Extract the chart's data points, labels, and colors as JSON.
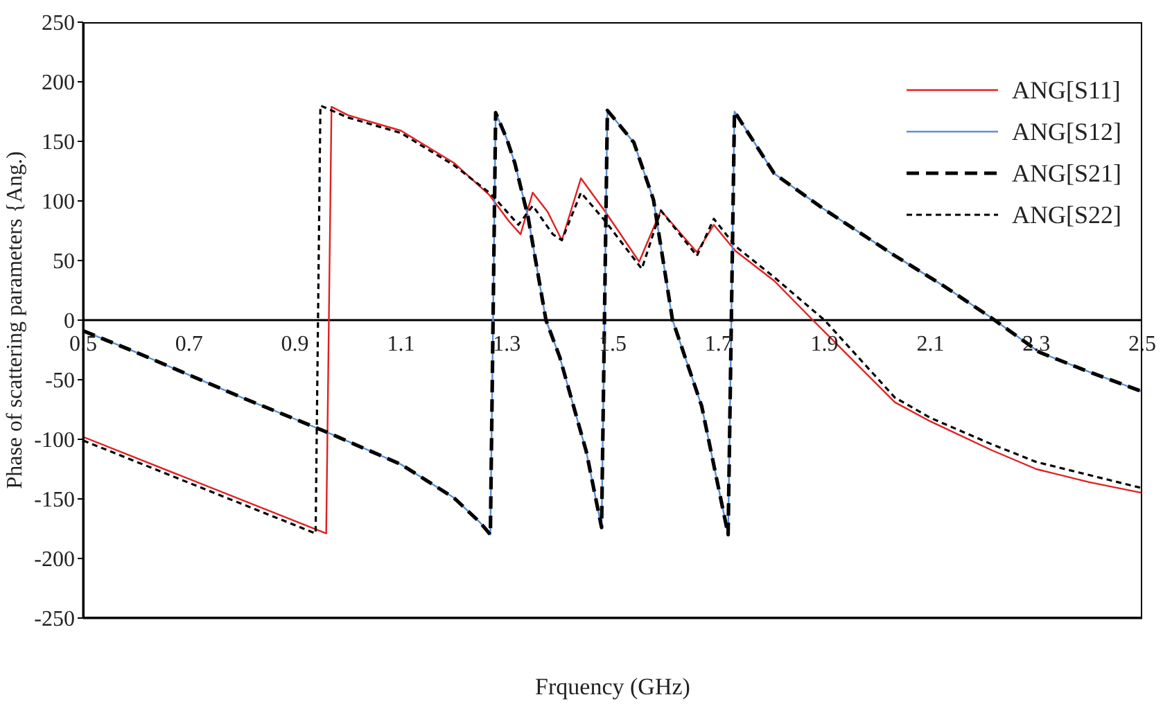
{
  "chart_data": {
    "type": "line",
    "xlabel": "Frquency (GHz)",
    "ylabel": "Phase of scattering parameters {Ang.)",
    "xlim": [
      0.5,
      2.5
    ],
    "xticks": [
      0.5,
      0.7,
      0.9,
      1.1,
      1.3,
      1.5,
      1.7,
      1.9,
      2.1,
      2.3,
      2.5
    ],
    "ylim": [
      -250,
      250
    ],
    "yticks": [
      -250,
      -200,
      -150,
      -100,
      -50,
      0,
      50,
      100,
      150,
      200,
      250
    ],
    "grid": false,
    "legend": "top right",
    "marker": "none",
    "series": [
      {
        "name": "ANG[S11]",
        "color": "#e02020",
        "line_style": "solid",
        "x": [
          0.5,
          0.959,
          0.969,
          1.0,
          1.1,
          1.2,
          1.267,
          1.304,
          1.326,
          1.349,
          1.377,
          1.404,
          1.44,
          1.486,
          1.55,
          1.591,
          1.659,
          1.691,
          1.732,
          1.805,
          1.878,
          2.033,
          2.1,
          2.215,
          2.3,
          2.4,
          2.5
        ],
        "values": [
          -98,
          -179,
          179,
          172,
          159,
          132,
          105,
          83,
          72,
          107,
          91,
          67,
          119,
          91,
          49,
          92,
          57,
          80,
          58,
          33,
          0,
          -69,
          -85,
          -109,
          -125,
          -136,
          -145
        ]
      },
      {
        "name": "ANG[S12]",
        "color": "#5b8fd9",
        "line_style": "solid",
        "x": [
          0.5,
          0.6,
          0.7,
          0.8,
          0.9,
          0.96,
          1.1,
          1.2,
          1.25,
          1.269,
          1.279,
          1.3,
          1.315,
          1.34,
          1.374,
          1.4,
          1.45,
          1.479,
          1.49,
          1.54,
          1.577,
          1.613,
          1.668,
          1.718,
          1.73,
          1.805,
          1.896,
          2.033,
          2.124,
          2.215,
          2.306,
          2.397,
          2.5
        ],
        "values": [
          -9,
          -27,
          -46,
          -65,
          -83,
          -94,
          -121,
          -149,
          -170,
          -180,
          174,
          152,
          132,
          87,
          0,
          -31,
          -110,
          -174,
          176,
          149,
          101,
          0,
          -72,
          -180,
          175,
          123,
          94,
          54,
          29,
          2,
          -27,
          -43,
          -60
        ]
      },
      {
        "name": "ANG[S21]",
        "color": "#000000",
        "line_style": "dashed",
        "x": [
          0.5,
          0.6,
          0.7,
          0.8,
          0.9,
          0.96,
          1.1,
          1.2,
          1.25,
          1.269,
          1.279,
          1.3,
          1.315,
          1.34,
          1.374,
          1.4,
          1.45,
          1.479,
          1.49,
          1.54,
          1.577,
          1.613,
          1.668,
          1.718,
          1.73,
          1.805,
          1.896,
          2.033,
          2.124,
          2.215,
          2.306,
          2.397,
          2.5
        ],
        "values": [
          -9,
          -27,
          -46,
          -65,
          -83,
          -94,
          -121,
          -149,
          -170,
          -180,
          174,
          152,
          132,
          87,
          0,
          -31,
          -110,
          -174,
          176,
          149,
          101,
          0,
          -72,
          -180,
          175,
          123,
          94,
          54,
          29,
          2,
          -27,
          -43,
          -60
        ]
      },
      {
        "name": "ANG[S22]",
        "color": "#000000",
        "line_style": "dotted",
        "x": [
          0.5,
          0.939,
          0.948,
          1.0,
          1.1,
          1.2,
          1.267,
          1.286,
          1.322,
          1.349,
          1.387,
          1.404,
          1.44,
          1.486,
          1.555,
          1.591,
          1.659,
          1.691,
          1.732,
          1.805,
          1.9,
          2.033,
          2.1,
          2.215,
          2.3,
          2.5
        ],
        "values": [
          -101,
          -179,
          180,
          170,
          157,
          130,
          107,
          98,
          80,
          96,
          72,
          67,
          107,
          83,
          43,
          92,
          54,
          85,
          62,
          36,
          0,
          -65,
          -82,
          -104,
          -119,
          -141
        ]
      }
    ]
  }
}
